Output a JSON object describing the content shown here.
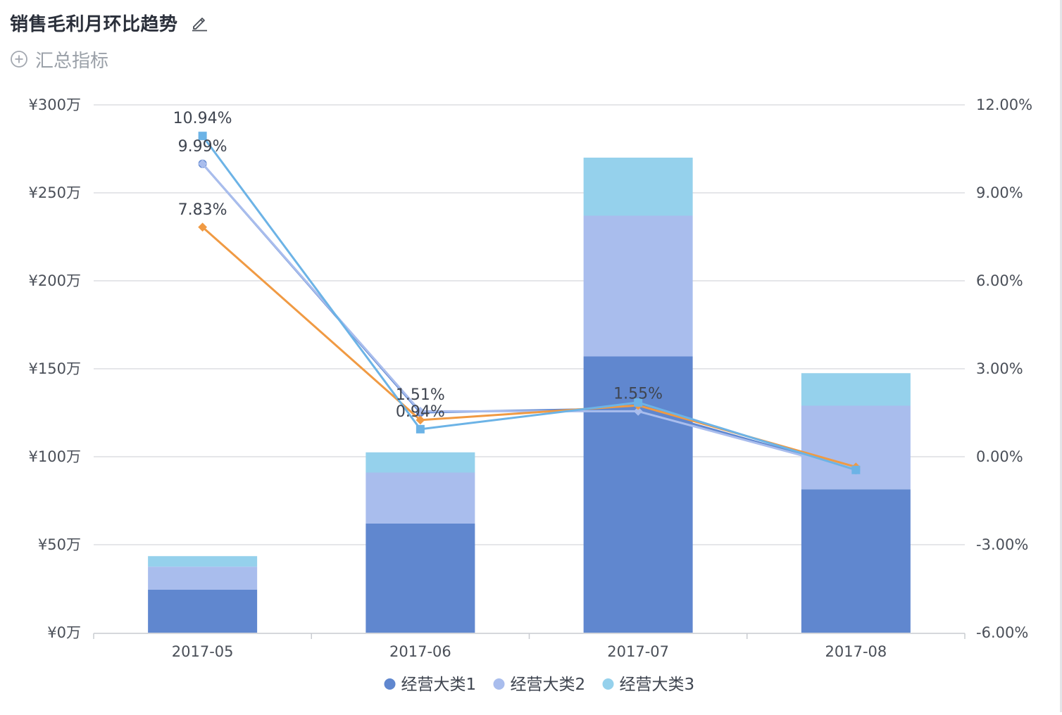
{
  "header": {
    "title": "销售毛利月环比趋势",
    "summary_label": "汇总指标"
  },
  "icons": {
    "edit": "pencil-edit-icon",
    "add": "plus-circle-icon"
  },
  "chart_data": {
    "type": "bar",
    "stacked": true,
    "categories": [
      "2017-05",
      "2017-06",
      "2017-07",
      "2017-08"
    ],
    "y_left": {
      "min": 0,
      "max": 3000000,
      "ticks": [
        0,
        500000,
        1000000,
        1500000,
        2000000,
        2500000,
        3000000
      ],
      "tick_labels": [
        "¥0万",
        "¥50万",
        "¥100万",
        "¥150万",
        "¥200万",
        "¥250万",
        "¥300万"
      ]
    },
    "y_right": {
      "min": -6,
      "max": 12,
      "ticks": [
        -6,
        -3,
        0,
        3,
        6,
        9,
        12
      ],
      "tick_labels": [
        "-6.00%",
        "-3.00%",
        "0.00%",
        "3.00%",
        "6.00%",
        "9.00%",
        "12.00%"
      ]
    },
    "grid": true,
    "legend_position": "bottom-center",
    "series": [
      {
        "name": "经营大类1",
        "color": "#6087cf",
        "values": [
          245000,
          620000,
          1570000,
          815000
        ]
      },
      {
        "name": "经营大类2",
        "color": "#a9bded",
        "values": [
          130000,
          290000,
          800000,
          475000
        ]
      },
      {
        "name": "经营大类3",
        "color": "#95d1ec",
        "values": [
          60000,
          115000,
          330000,
          185000
        ]
      }
    ],
    "lines": [
      {
        "color": "#6087cf",
        "marker": "circle",
        "values": [
          9.99,
          1.51,
          1.65,
          -0.45
        ]
      },
      {
        "color": "#a9bded",
        "marker": "diamond",
        "values": [
          9.99,
          1.55,
          1.55,
          -0.45
        ]
      },
      {
        "color": "#f09a43",
        "marker": "diamond",
        "values": [
          7.83,
          1.25,
          1.75,
          -0.35
        ]
      },
      {
        "color": "#6cb3e6",
        "marker": "square",
        "values": [
          10.94,
          0.94,
          1.85,
          -0.45
        ]
      }
    ],
    "data_labels": [
      {
        "text": "10.94%",
        "category": "2017-05",
        "value": 10.94
      },
      {
        "text": "9.99%",
        "category": "2017-05",
        "value": 9.99
      },
      {
        "text": "7.83%",
        "category": "2017-05",
        "value": 7.83
      },
      {
        "text": "1.51%",
        "category": "2017-06",
        "value": 1.51
      },
      {
        "text": "0.94%",
        "category": "2017-06",
        "value": 0.94
      },
      {
        "text": "1.55%",
        "category": "2017-07",
        "value": 1.55
      }
    ]
  }
}
